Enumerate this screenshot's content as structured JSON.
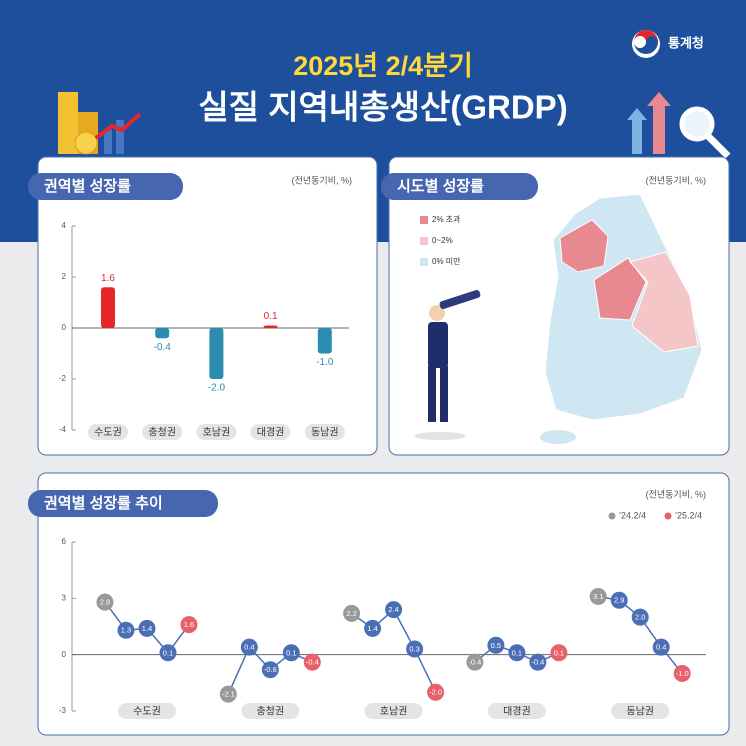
{
  "header": {
    "logo": "통계청",
    "subtitle": "2025년 2/4분기",
    "title": "실질 지역내총생산(GRDP)"
  },
  "chart_data": [
    {
      "type": "bar",
      "title": "권역별 성장률",
      "unit": "(전년동기비, %)",
      "categories": [
        "수도권",
        "충청권",
        "호남권",
        "대경권",
        "동남권"
      ],
      "values": [
        1.6,
        -0.4,
        -2.0,
        0.1,
        -1.0
      ],
      "value_labels": [
        "1.6",
        "-0.4",
        "-2.0",
        "0.1",
        "-1.0"
      ],
      "colors": [
        "#e5262d",
        "#2a8db0",
        "#2a8db0",
        "#e5262d",
        "#2a8db0"
      ],
      "ylim": [
        -4,
        4
      ],
      "yticks": [
        -4,
        -2,
        0,
        2,
        4
      ]
    },
    {
      "type": "line",
      "title": "권역별 성장률 추이",
      "unit": "(전년동기비, %)",
      "line_color": "#4a6fb5",
      "legend": [
        {
          "label": "’24.2/4",
          "color": "#999999"
        },
        {
          "label": "’25.2/4",
          "color": "#e8606a"
        }
      ],
      "series": [
        {
          "name": "수도권",
          "values": [
            2.8,
            1.3,
            1.4,
            0.1,
            1.6
          ],
          "value_labels": [
            "2.8",
            "1.3",
            "1.4",
            "0.1",
            "1.6"
          ]
        },
        {
          "name": "충청권",
          "values": [
            -2.1,
            0.4,
            -0.8,
            0.1,
            -0.4
          ],
          "value_labels": [
            "-2.1",
            "0.4",
            "-0.8",
            "0.1",
            "-0.4"
          ]
        },
        {
          "name": "호남권",
          "values": [
            2.2,
            1.4,
            2.4,
            0.3,
            -2.0
          ],
          "value_labels": [
            "2.2",
            "1.4",
            "2.4",
            "0.3",
            "-2.0"
          ]
        },
        {
          "name": "대경권",
          "values": [
            -0.4,
            0.5,
            0.1,
            -0.4,
            0.1
          ],
          "value_labels": [
            "-0.4",
            "0.5",
            "0.1",
            "-0.4",
            "0.1"
          ]
        },
        {
          "name": "동남권",
          "values": [
            3.1,
            2.9,
            2.0,
            0.4,
            -1.0
          ],
          "value_labels": [
            "3.1",
            "2.9",
            "2.0",
            "0.4",
            "-1.0"
          ]
        }
      ],
      "ylim": [
        -3,
        6
      ],
      "yticks": [
        -3,
        0,
        3,
        6
      ]
    }
  ],
  "map": {
    "title": "시도별 성장률",
    "unit": "(전년동기비, %)",
    "legend": [
      {
        "label": "2% 초과",
        "color": "#e8898f"
      },
      {
        "label": "0~2%",
        "color": "#f4c6c8"
      },
      {
        "label": "0% 미만",
        "color": "#cfe6f3"
      }
    ]
  }
}
